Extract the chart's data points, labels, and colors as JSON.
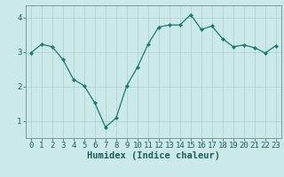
{
  "x": [
    0,
    1,
    2,
    3,
    4,
    5,
    6,
    7,
    8,
    9,
    10,
    11,
    12,
    13,
    14,
    15,
    16,
    17,
    18,
    19,
    20,
    21,
    22,
    23
  ],
  "y": [
    2.97,
    3.22,
    3.15,
    2.78,
    2.2,
    2.02,
    1.52,
    0.82,
    1.08,
    2.02,
    2.55,
    3.22,
    3.72,
    3.78,
    3.78,
    4.08,
    3.65,
    3.75,
    3.38,
    3.15,
    3.2,
    3.12,
    2.97,
    3.18
  ],
  "line_color": "#1a7a6e",
  "marker": "D",
  "markersize": 2.2,
  "bg_color": "#cce9e9",
  "grid_color": "#aacfcf",
  "xlabel": "Humidex (Indice chaleur)",
  "ylim": [
    0.5,
    4.35
  ],
  "xlim": [
    -0.5,
    23.5
  ],
  "yticks": [
    1,
    2,
    3,
    4
  ],
  "xticks": [
    0,
    1,
    2,
    3,
    4,
    5,
    6,
    7,
    8,
    9,
    10,
    11,
    12,
    13,
    14,
    15,
    16,
    17,
    18,
    19,
    20,
    21,
    22,
    23
  ],
  "tick_fontsize": 6.5,
  "label_fontsize": 7.5,
  "tick_color": "#1a5f5f",
  "axis_color": "#7a9a9a",
  "spine_color": "#7a9a9a"
}
